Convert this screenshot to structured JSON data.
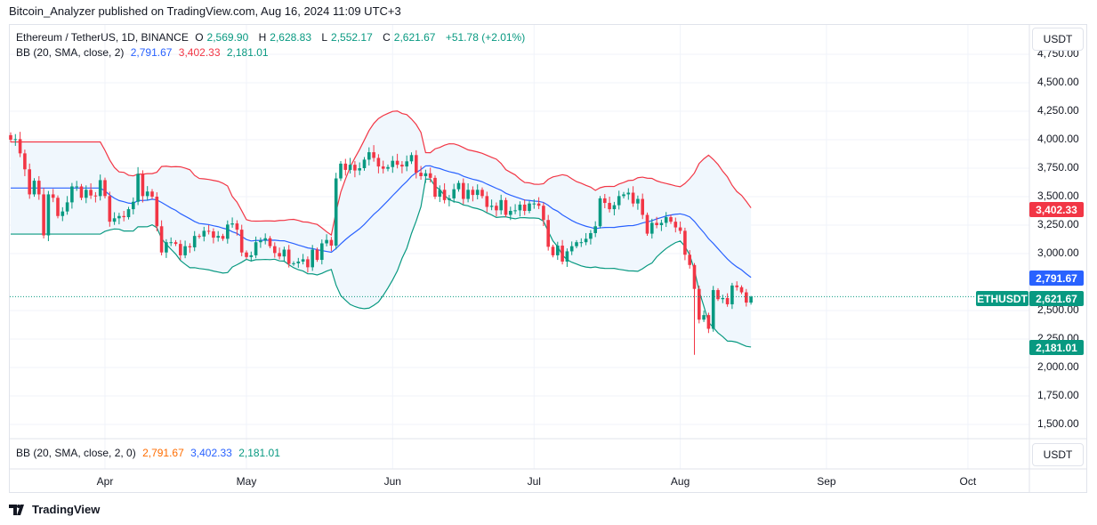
{
  "publisher_line": "Bitcoin_Analyzer published on TradingView.com, Aug 16, 2024 11:09 UTC+3",
  "symbol": {
    "name": "Ethereum / TetherUS, 1D, BINANCE",
    "o_label": "O",
    "o": "2,569.90",
    "h_label": "H",
    "h": "2,628.83",
    "l_label": "L",
    "l": "2,552.17",
    "c_label": "C",
    "c": "2,621.67",
    "change": "+51.78 (+2.01%)",
    "ticker": "ETHUSDT"
  },
  "bb_legend": {
    "label": "BB (20, SMA, close, 2)",
    "basis": "2,791.67",
    "upper": "3,402.33",
    "lower": "2,181.01"
  },
  "bb_pane": {
    "label": "BB (20, SMA, close, 2, 0)",
    "basis": "2,791.67",
    "upper": "3,402.33",
    "lower": "2,181.01"
  },
  "currency_button": "USDT",
  "price_labels": {
    "upper": "3,402.33",
    "basis": "2,791.67",
    "last": "2,621.67",
    "lower": "2,181.01"
  },
  "price_ticks": [
    "4,750.00",
    "4,500.00",
    "4,250.00",
    "4,000.00",
    "3,750.00",
    "3,500.00",
    "3,250.00",
    "3,000.00",
    "2,500.00",
    "2,250.00",
    "2,000.00",
    "1,750.00",
    "1,500.00"
  ],
  "months": [
    {
      "label": "Apr",
      "day_index": 20
    },
    {
      "label": "May",
      "day_index": 50
    },
    {
      "label": "Jun",
      "day_index": 81
    },
    {
      "label": "Jul",
      "day_index": 111
    },
    {
      "label": "Aug",
      "day_index": 142
    },
    {
      "label": "Sep",
      "day_index": 173
    },
    {
      "label": "Oct",
      "day_index": 203
    }
  ],
  "footer_logo": "TradingView",
  "colors": {
    "up": "#089981",
    "down": "#f23645",
    "basis": "#2962ff",
    "upper": "#f23645",
    "lower": "#089981",
    "band_fill": "#f0f7fd"
  },
  "chart_data": {
    "type": "candlestick",
    "first_date": "2024-03-12",
    "last_date": "2024-08-16",
    "y_range": [
      1450,
      4800
    ],
    "closes": [
      4000,
      4005,
      3880,
      3740,
      3520,
      3640,
      3520,
      3160,
      3520,
      3490,
      3330,
      3370,
      3450,
      3590,
      3590,
      3490,
      3560,
      3510,
      3505,
      3645,
      3505,
      3280,
      3310,
      3330,
      3320,
      3390,
      3455,
      3700,
      3505,
      3545,
      3500,
      3240,
      3010,
      3100,
      3100,
      3085,
      2985,
      3065,
      3055,
      3155,
      3150,
      3200,
      3195,
      3140,
      3155,
      3130,
      3255,
      3265,
      3210,
      3010,
      2970,
      2985,
      3100,
      3115,
      3135,
      3065,
      3005,
      2975,
      3035,
      2910,
      2915,
      2930,
      2950,
      2880,
      3035,
      2945,
      3090,
      3120,
      3070,
      3660,
      3790,
      3735,
      3780,
      3730,
      3750,
      3825,
      3890,
      3840,
      3765,
      3745,
      3760,
      3815,
      3780,
      3765,
      3810,
      3865,
      3710,
      3680,
      3705,
      3665,
      3500,
      3560,
      3470,
      3485,
      3565,
      3620,
      3480,
      3560,
      3515,
      3560,
      3505,
      3410,
      3420,
      3380,
      3470,
      3340,
      3375,
      3380,
      3430,
      3375,
      3440,
      3440,
      3420,
      3295,
      3060,
      2985,
      3070,
      2930,
      3020,
      3065,
      3100,
      3100,
      3130,
      3180,
      3240,
      3485,
      3445,
      3390,
      3425,
      3505,
      3520,
      3535,
      3440,
      3480,
      3340,
      3175,
      3270,
      3250,
      3270,
      3320,
      3280,
      3230,
      3200,
      2990,
      2900,
      2690,
      2420,
      2460,
      2340,
      2680,
      2600,
      2610,
      2555,
      2720,
      2705,
      2660,
      2569.9,
      2621.67
    ],
    "last": {
      "open": 2569.9,
      "high": 2628.83,
      "low": 2552.17,
      "close": 2621.67
    },
    "indicator": {
      "name": "BB",
      "length": 20,
      "mult": 2,
      "basis": 2791.67,
      "upper": 3402.33,
      "lower": 2181.01
    }
  }
}
